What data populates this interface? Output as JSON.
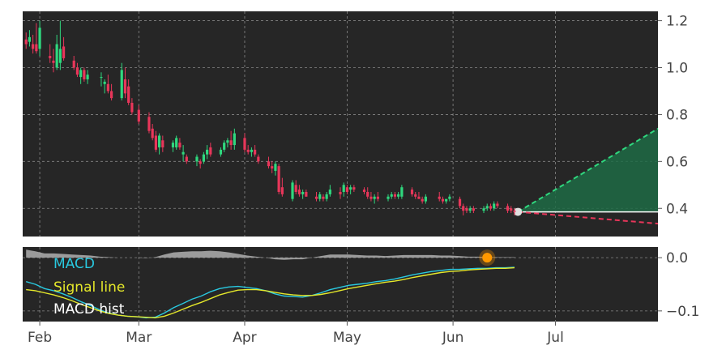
{
  "colors": {
    "background": "#ffffff",
    "panel": "#262626",
    "grid": "#b0b0b0",
    "up": "#2fd87e",
    "down": "#e8365a",
    "forecast_up": "#2fd87e",
    "forecast_down": "#e8365a",
    "forecast_fill": "#1f6b45",
    "macd": "#29c9e0",
    "signal": "#e5e82a",
    "hist": "#a9a9a9",
    "marker": "#ff9900",
    "tick_text": "#444444"
  },
  "chart_data": [
    {
      "type": "candlestick",
      "title": "",
      "ylim": [
        0.28,
        1.24
      ],
      "yticks": [
        {
          "value": 1.2,
          "label": "1.2"
        },
        {
          "value": 1.0,
          "label": "1.0"
        },
        {
          "value": 0.8,
          "label": "0.8"
        },
        {
          "value": 0.6,
          "label": "0.6"
        },
        {
          "value": 0.4,
          "label": "0.4"
        }
      ],
      "last_close": 0.385,
      "candles": [
        [
          "01-28",
          1.12,
          1.15,
          1.08,
          1.1
        ],
        [
          "01-29",
          1.11,
          1.16,
          1.09,
          1.13
        ],
        [
          "01-30",
          1.1,
          1.14,
          1.06,
          1.08
        ],
        [
          "01-31",
          1.1,
          1.19,
          1.06,
          1.07
        ],
        [
          "02-01",
          1.08,
          1.2,
          1.05,
          1.17
        ],
        [
          "02-04",
          1.05,
          1.1,
          1.02,
          1.04
        ],
        [
          "02-05",
          1.03,
          1.08,
          0.98,
          1.02
        ],
        [
          "02-06",
          1.0,
          1.14,
          0.99,
          1.1
        ],
        [
          "02-07",
          1.02,
          1.2,
          0.99,
          1.08
        ],
        [
          "02-08",
          1.09,
          1.13,
          1.03,
          1.04
        ],
        [
          "02-11",
          1.03,
          1.05,
          0.99,
          1.0
        ],
        [
          "02-12",
          1.0,
          1.02,
          0.96,
          0.97
        ],
        [
          "02-13",
          0.96,
          1.0,
          0.93,
          0.99
        ],
        [
          "02-14",
          0.99,
          1.0,
          0.94,
          0.95
        ],
        [
          "02-15",
          0.95,
          0.99,
          0.93,
          0.97
        ],
        [
          "02-19",
          0.96,
          0.98,
          0.92,
          0.96
        ],
        [
          "02-20",
          0.93,
          0.95,
          0.89,
          0.94
        ],
        [
          "02-21",
          0.93,
          0.97,
          0.89,
          0.9
        ],
        [
          "02-22",
          0.9,
          0.93,
          0.86,
          0.87
        ],
        [
          "02-25",
          0.87,
          1.02,
          0.86,
          0.99
        ],
        [
          "02-26",
          0.95,
          1.0,
          0.87,
          0.89
        ],
        [
          "02-27",
          0.92,
          0.95,
          0.84,
          0.85
        ],
        [
          "02-28",
          0.85,
          0.87,
          0.8,
          0.81
        ],
        [
          "03-01",
          0.82,
          0.84,
          0.76,
          0.77
        ],
        [
          "03-04",
          0.79,
          0.81,
          0.72,
          0.73
        ],
        [
          "03-05",
          0.74,
          0.76,
          0.69,
          0.7
        ],
        [
          "03-06",
          0.71,
          0.73,
          0.64,
          0.65
        ],
        [
          "03-07",
          0.66,
          0.72,
          0.63,
          0.71
        ],
        [
          "03-08",
          0.69,
          0.71,
          0.64,
          0.66
        ],
        [
          "03-11",
          0.66,
          0.69,
          0.64,
          0.68
        ],
        [
          "03-12",
          0.66,
          0.71,
          0.65,
          0.7
        ],
        [
          "03-13",
          0.68,
          0.7,
          0.65,
          0.66
        ],
        [
          "03-14",
          0.63,
          0.67,
          0.6,
          0.64
        ],
        [
          "03-15",
          0.62,
          0.63,
          0.59,
          0.6
        ],
        [
          "03-18",
          0.6,
          0.63,
          0.58,
          0.62
        ],
        [
          "03-19",
          0.6,
          0.61,
          0.57,
          0.59
        ],
        [
          "03-20",
          0.6,
          0.64,
          0.59,
          0.63
        ],
        [
          "03-21",
          0.63,
          0.67,
          0.61,
          0.65
        ],
        [
          "03-22",
          0.66,
          0.68,
          0.62,
          0.63
        ],
        [
          "03-25",
          0.63,
          0.66,
          0.62,
          0.65
        ],
        [
          "03-26",
          0.65,
          0.69,
          0.64,
          0.68
        ],
        [
          "03-27",
          0.68,
          0.7,
          0.66,
          0.69
        ],
        [
          "03-28",
          0.69,
          0.73,
          0.65,
          0.67
        ],
        [
          "03-29",
          0.67,
          0.74,
          0.65,
          0.72
        ],
        [
          "04-01",
          0.7,
          0.72,
          0.64,
          0.65
        ],
        [
          "04-02",
          0.65,
          0.67,
          0.63,
          0.64
        ],
        [
          "04-03",
          0.64,
          0.66,
          0.62,
          0.65
        ],
        [
          "04-04",
          0.65,
          0.67,
          0.62,
          0.63
        ],
        [
          "04-05",
          0.62,
          0.63,
          0.59,
          0.6
        ],
        [
          "04-08",
          0.6,
          0.62,
          0.57,
          0.58
        ],
        [
          "04-09",
          0.58,
          0.6,
          0.55,
          0.57
        ],
        [
          "04-10",
          0.56,
          0.6,
          0.54,
          0.59
        ],
        [
          "04-11",
          0.58,
          0.59,
          0.46,
          0.47
        ],
        [
          "04-12",
          0.49,
          0.53,
          0.45,
          0.46
        ],
        [
          "04-15",
          0.44,
          0.52,
          0.43,
          0.51
        ],
        [
          "04-16",
          0.5,
          0.52,
          0.46,
          0.47
        ],
        [
          "04-17",
          0.48,
          0.5,
          0.45,
          0.46
        ],
        [
          "04-18",
          0.46,
          0.48,
          0.44,
          0.47
        ],
        [
          "04-19",
          0.47,
          0.48,
          0.45,
          0.45
        ],
        [
          "04-22",
          0.45,
          0.47,
          0.43,
          0.44
        ],
        [
          "04-23",
          0.44,
          0.47,
          0.43,
          0.46
        ],
        [
          "04-24",
          0.45,
          0.46,
          0.43,
          0.44
        ],
        [
          "04-25",
          0.44,
          0.47,
          0.43,
          0.46
        ],
        [
          "04-26",
          0.46,
          0.5,
          0.45,
          0.48
        ],
        [
          "04-29",
          0.47,
          0.49,
          0.44,
          0.46
        ],
        [
          "04-30",
          0.47,
          0.51,
          0.45,
          0.5
        ],
        [
          "05-01",
          0.49,
          0.5,
          0.46,
          0.47
        ],
        [
          "05-02",
          0.48,
          0.5,
          0.46,
          0.49
        ],
        [
          "05-03",
          0.49,
          0.5,
          0.47,
          0.48
        ],
        [
          "05-06",
          0.48,
          0.49,
          0.46,
          0.47
        ],
        [
          "05-07",
          0.47,
          0.49,
          0.44,
          0.45
        ],
        [
          "05-08",
          0.45,
          0.47,
          0.43,
          0.44
        ],
        [
          "05-09",
          0.44,
          0.46,
          0.42,
          0.45
        ],
        [
          "05-10",
          0.45,
          0.47,
          0.43,
          0.44
        ],
        [
          "05-13",
          0.44,
          0.46,
          0.43,
          0.45
        ],
        [
          "05-14",
          0.45,
          0.47,
          0.44,
          0.46
        ],
        [
          "05-15",
          0.46,
          0.47,
          0.44,
          0.45
        ],
        [
          "05-16",
          0.45,
          0.47,
          0.44,
          0.46
        ],
        [
          "05-17",
          0.45,
          0.5,
          0.44,
          0.49
        ],
        [
          "05-20",
          0.48,
          0.49,
          0.45,
          0.46
        ],
        [
          "05-21",
          0.46,
          0.47,
          0.44,
          0.45
        ],
        [
          "05-22",
          0.45,
          0.47,
          0.44,
          0.44
        ],
        [
          "05-23",
          0.44,
          0.45,
          0.42,
          0.43
        ],
        [
          "05-24",
          0.43,
          0.46,
          0.42,
          0.45
        ],
        [
          "05-28",
          0.45,
          0.47,
          0.43,
          0.44
        ],
        [
          "05-29",
          0.44,
          0.45,
          0.42,
          0.43
        ],
        [
          "05-30",
          0.43,
          0.44,
          0.42,
          0.44
        ],
        [
          "05-31",
          0.44,
          0.46,
          0.43,
          0.45
        ],
        [
          "06-03",
          0.44,
          0.45,
          0.4,
          0.41
        ],
        [
          "06-04",
          0.41,
          0.42,
          0.37,
          0.39
        ],
        [
          "06-05",
          0.4,
          0.41,
          0.38,
          0.39
        ],
        [
          "06-06",
          0.39,
          0.41,
          0.38,
          0.4
        ],
        [
          "06-07",
          0.4,
          0.41,
          0.38,
          0.39
        ],
        [
          "06-10",
          0.39,
          0.41,
          0.38,
          0.4
        ],
        [
          "06-11",
          0.4,
          0.42,
          0.39,
          0.41
        ],
        [
          "06-12",
          0.41,
          0.42,
          0.39,
          0.4
        ],
        [
          "06-13",
          0.4,
          0.43,
          0.39,
          0.42
        ],
        [
          "06-14",
          0.42,
          0.43,
          0.4,
          0.41
        ],
        [
          "06-17",
          0.41,
          0.42,
          0.38,
          0.39
        ],
        [
          "06-18",
          0.4,
          0.41,
          0.38,
          0.39
        ],
        [
          "06-19",
          0.39,
          0.4,
          0.37,
          0.385
        ]
      ],
      "forecast": {
        "start": {
          "date": "06-20",
          "value": 0.385
        },
        "upper_end": {
          "date": "07-31",
          "value": 0.74
        },
        "lower_end": {
          "date": "07-31",
          "value": 0.335
        }
      }
    },
    {
      "type": "line",
      "ylim": [
        -0.12,
        0.02
      ],
      "yticks": [
        {
          "value": 0.0,
          "label": "0.0"
        },
        {
          "value": -0.1,
          "label": "−0.1"
        }
      ],
      "legend": {
        "macd": "MACD",
        "signal": "Signal line",
        "hist": "MACD hist"
      },
      "marker": {
        "date": "06-11",
        "value": 0.0
      },
      "series": [
        {
          "name": "MACD",
          "values": [
            -0.045,
            -0.05,
            -0.058,
            -0.062,
            -0.068,
            -0.075,
            -0.083,
            -0.09,
            -0.098,
            -0.104,
            -0.108,
            -0.11,
            -0.111,
            -0.113,
            -0.112,
            -0.104,
            -0.094,
            -0.086,
            -0.078,
            -0.072,
            -0.064,
            -0.058,
            -0.055,
            -0.054,
            -0.056,
            -0.058,
            -0.062,
            -0.068,
            -0.072,
            -0.073,
            -0.074,
            -0.071,
            -0.066,
            -0.06,
            -0.056,
            -0.052,
            -0.05,
            -0.048,
            -0.045,
            -0.043,
            -0.04,
            -0.036,
            -0.032,
            -0.029,
            -0.026,
            -0.024,
            -0.022,
            -0.022,
            -0.021,
            -0.02,
            -0.02,
            -0.019,
            -0.019,
            -0.018
          ]
        },
        {
          "name": "Signal line",
          "values": [
            -0.06,
            -0.062,
            -0.066,
            -0.07,
            -0.075,
            -0.081,
            -0.088,
            -0.094,
            -0.1,
            -0.105,
            -0.108,
            -0.11,
            -0.111,
            -0.112,
            -0.113,
            -0.11,
            -0.104,
            -0.097,
            -0.09,
            -0.084,
            -0.077,
            -0.07,
            -0.065,
            -0.061,
            -0.06,
            -0.06,
            -0.062,
            -0.065,
            -0.068,
            -0.07,
            -0.071,
            -0.071,
            -0.069,
            -0.066,
            -0.062,
            -0.058,
            -0.055,
            -0.052,
            -0.049,
            -0.046,
            -0.044,
            -0.041,
            -0.037,
            -0.034,
            -0.031,
            -0.028,
            -0.026,
            -0.025,
            -0.023,
            -0.022,
            -0.021,
            -0.02,
            -0.02,
            -0.019
          ]
        },
        {
          "name": "MACD hist",
          "values": [
            0.015,
            0.012,
            0.008,
            0.008,
            0.007,
            0.006,
            0.005,
            0.004,
            0.002,
            0.001,
            0.0,
            0.0,
            0.0,
            -0.001,
            0.001,
            0.006,
            0.01,
            0.011,
            0.012,
            0.012,
            0.013,
            0.012,
            0.01,
            0.007,
            0.004,
            0.002,
            0.0,
            -0.003,
            -0.004,
            -0.003,
            -0.003,
            0.0,
            0.003,
            0.006,
            0.006,
            0.006,
            0.005,
            0.004,
            0.004,
            0.003,
            0.004,
            0.005,
            0.005,
            0.005,
            0.005,
            0.004,
            0.004,
            0.003,
            0.002,
            0.002,
            0.001,
            0.001,
            0.001,
            0.001
          ]
        }
      ]
    }
  ],
  "xaxis": {
    "range": [
      "01-28",
      "07-31"
    ],
    "ticks": [
      {
        "date": "02-01",
        "label": "Feb"
      },
      {
        "date": "03-01",
        "label": "Mar"
      },
      {
        "date": "04-01",
        "label": "Apr"
      },
      {
        "date": "05-01",
        "label": "May"
      },
      {
        "date": "06-01",
        "label": "Jun"
      },
      {
        "date": "07-01",
        "label": "Jul"
      }
    ]
  }
}
